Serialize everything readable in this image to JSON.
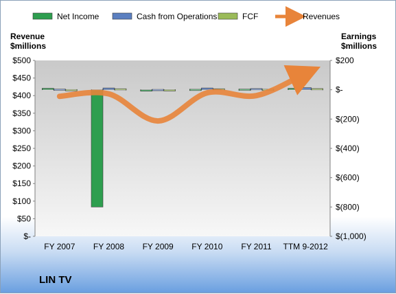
{
  "chart_data": {
    "type": "bar",
    "categories": [
      "FY 2007",
      "FY 2008",
      "FY 2009",
      "FY 2010",
      "FY 2011",
      "TTM 9-2012"
    ],
    "series": [
      {
        "name": "Net Income",
        "axis": "right",
        "values": [
          10,
          -800,
          -3,
          4,
          5,
          10
        ],
        "color": "#2e9e4f"
      },
      {
        "name": "Cash from Operations",
        "axis": "right",
        "values": [
          5,
          12,
          3,
          12,
          8,
          14
        ],
        "color": "#5b7fc0"
      },
      {
        "name": "FCF",
        "axis": "right",
        "values": [
          2,
          7,
          1,
          7,
          4,
          8
        ],
        "color": "#9bbb59"
      },
      {
        "name": "Revenues",
        "axis": "left",
        "type": "line",
        "values": [
          398,
          405,
          328,
          408,
          400,
          463
        ],
        "color": "#e8843a"
      }
    ],
    "ylabel_left": [
      "Revenue",
      "$millions"
    ],
    "ylabel_right": [
      "Earnings",
      "$millions"
    ],
    "yticks_left": [
      "$-",
      "$50",
      "$100",
      "$150",
      "$200",
      "$250",
      "$300",
      "$350",
      "$400",
      "$450",
      "$500"
    ],
    "yticks_right": [
      "$(1,000)",
      "$(800)",
      "$(600)",
      "$(400)",
      "$(200)",
      "$-",
      "$200"
    ],
    "ylim_left": [
      0,
      500
    ],
    "ylim_right": [
      -1000,
      200
    ],
    "legend_position": "top",
    "grid": false
  },
  "company": "LIN TV"
}
